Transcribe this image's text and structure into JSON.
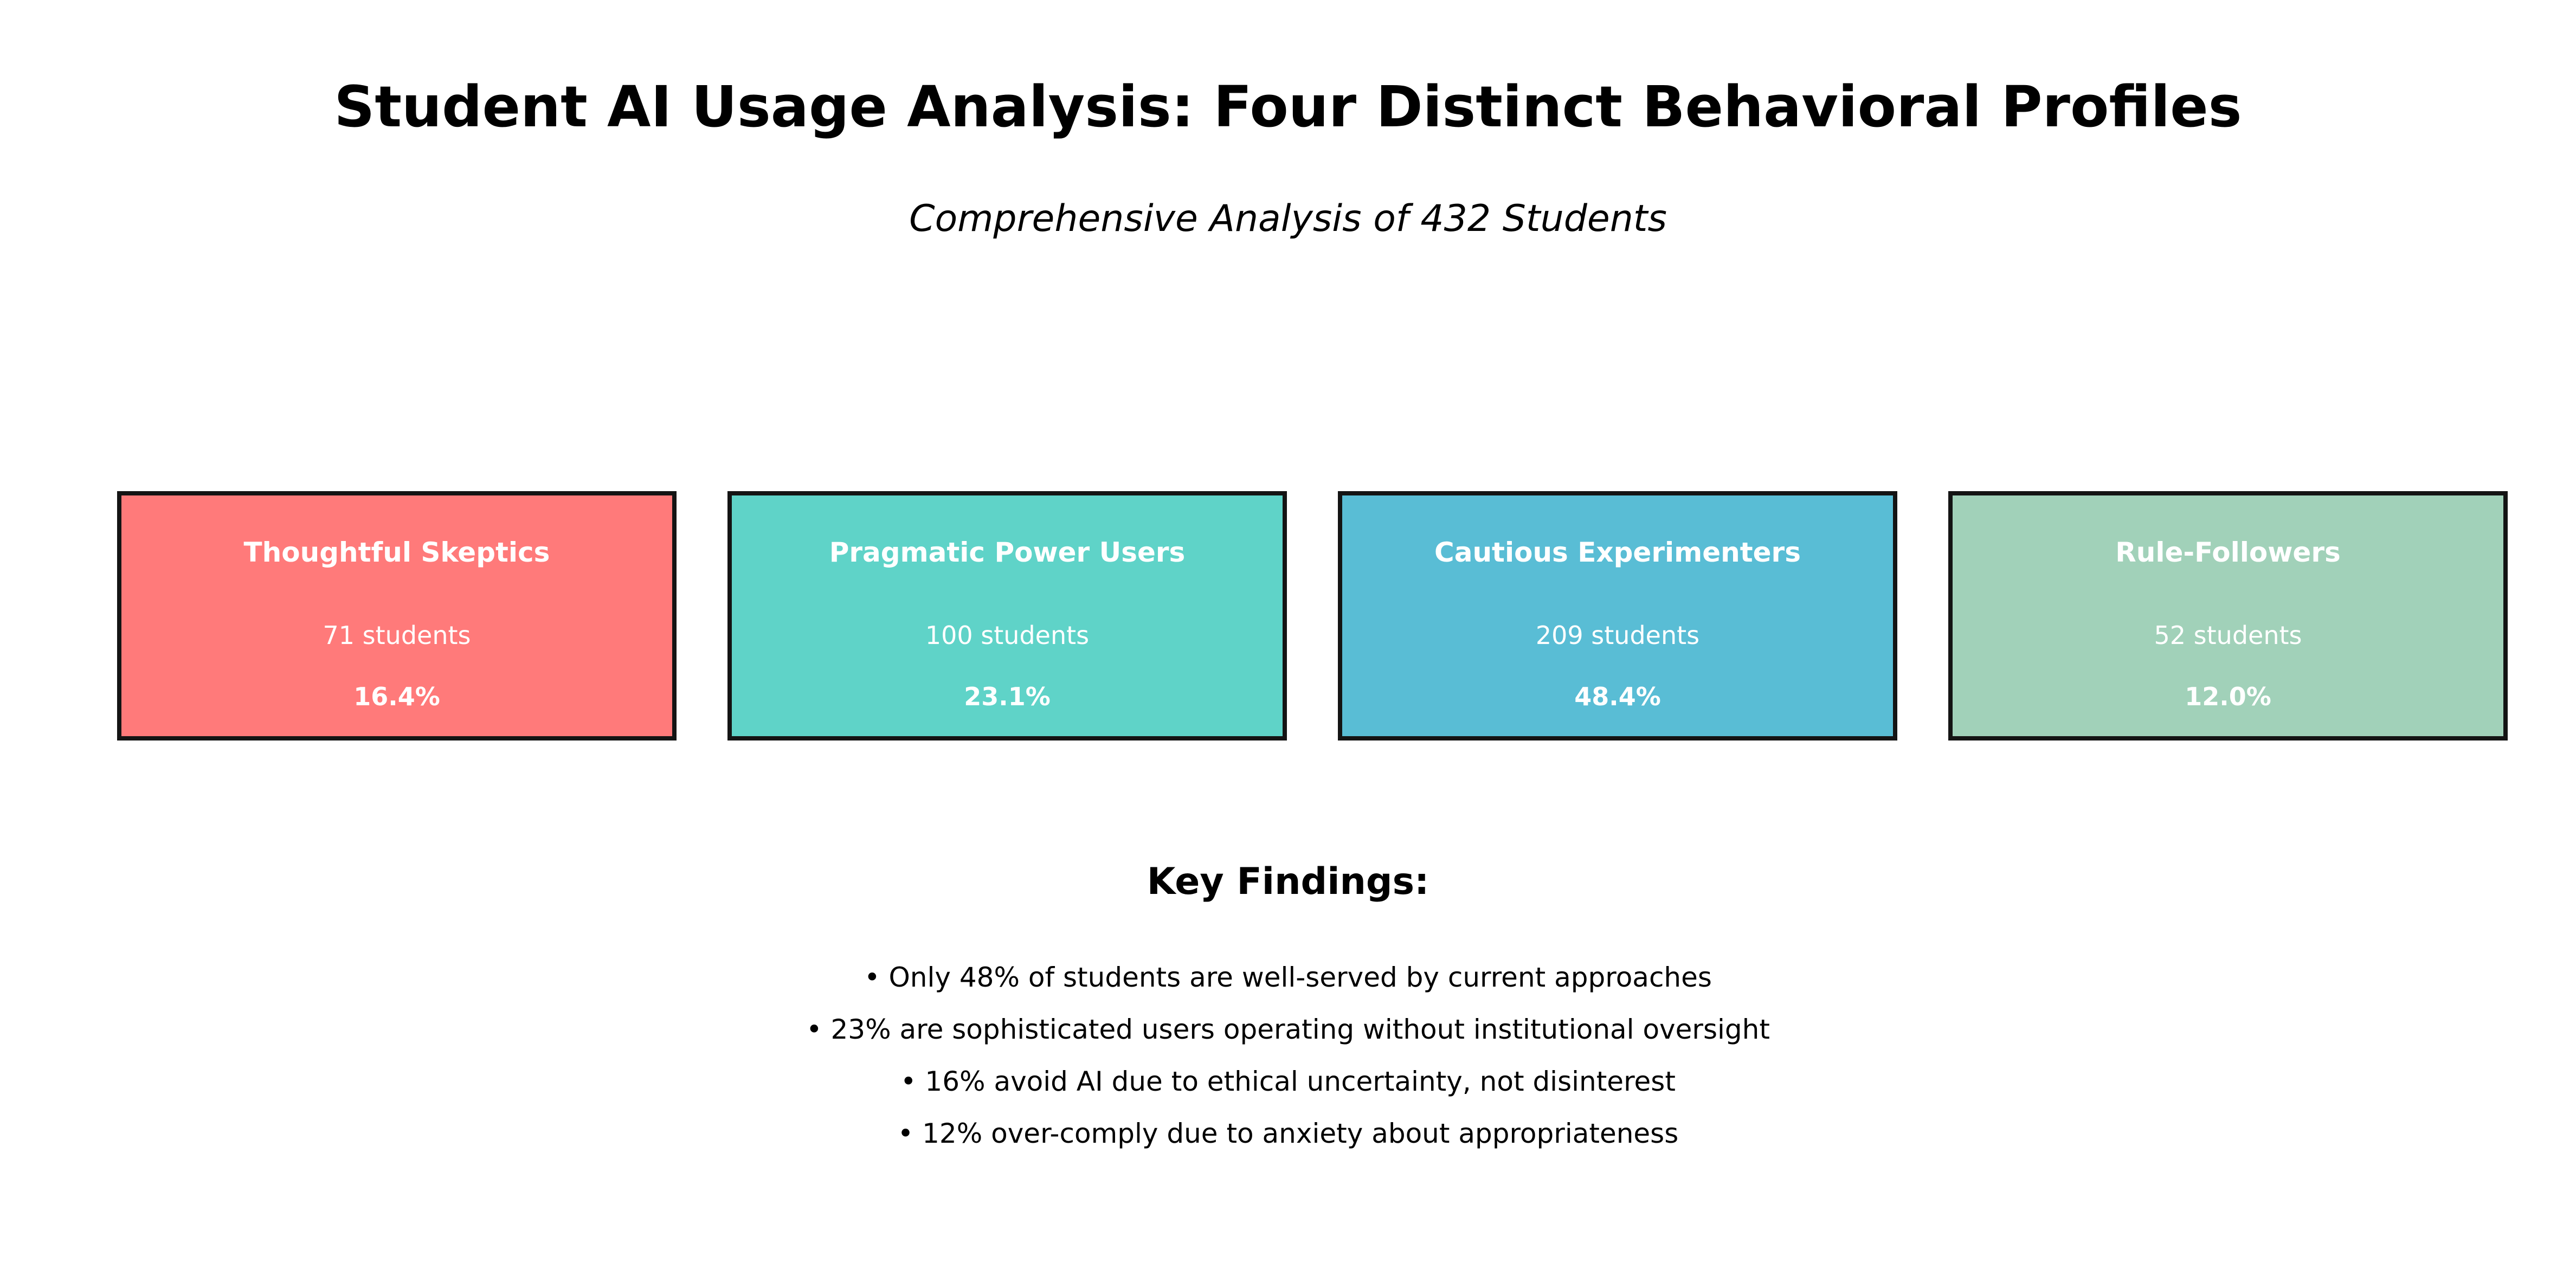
{
  "title": "Student AI Usage Analysis: Four Distinct Behavioral Profiles",
  "subtitle": "Comprehensive Analysis of 432 Students",
  "profiles": [
    {
      "name": "Thoughtful Skeptics",
      "count": "71 students",
      "percent": "16.4%",
      "color": "#ff7a7a"
    },
    {
      "name": "Pragmatic Power Users",
      "count": "100 students",
      "percent": "23.1%",
      "color": "#5fd3c8"
    },
    {
      "name": "Cautious Experimenters",
      "count": "209 students",
      "percent": "48.4%",
      "color": "#59bdd5"
    },
    {
      "name": "Rule-Followers",
      "count": "52 students",
      "percent": "12.0%",
      "color": "#a1d1b9"
    }
  ],
  "findings": {
    "heading": "Key Findings:",
    "items": [
      "• Only 48% of students are well-served by current approaches",
      "• 23% are sophisticated users operating without institutional oversight",
      "• 16% avoid AI due to ethical uncertainty, not disinterest",
      "• 12% over-comply due to anxiety about appropriateness"
    ]
  }
}
